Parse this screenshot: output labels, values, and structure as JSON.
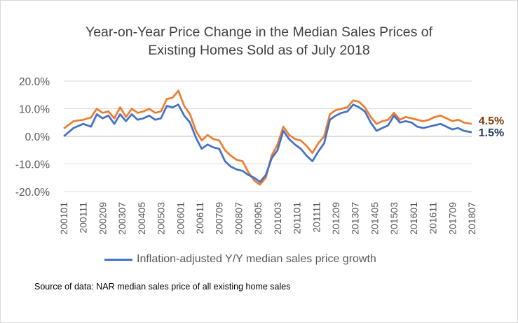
{
  "chart_data": {
    "type": "line",
    "title_line1": "Year-on-Year Price Change in the Median Sales Prices of",
    "title_line2": "Existing Homes Sold as of July 2018",
    "xlabel": "",
    "ylabel": "",
    "ylim": [
      -0.2,
      0.2
    ],
    "y_ticks": [
      0.2,
      0.1,
      0.0,
      -0.1,
      -0.2
    ],
    "y_tick_labels": [
      "20.0%",
      "10.0%",
      "0.0%",
      "-10.0%",
      "-20.0%"
    ],
    "x_start": "2001-01",
    "x_end": "2018-07",
    "x_tick_labels": [
      "200101",
      "200111",
      "200209",
      "200307",
      "200405",
      "200503",
      "200601",
      "200611",
      "200709",
      "200807",
      "200905",
      "201003",
      "201101",
      "201111",
      "201209",
      "201307",
      "201405",
      "201503",
      "201601",
      "201611",
      "201709",
      "201807"
    ],
    "grid": "horizontal",
    "legend_position": "bottom",
    "series": [
      {
        "name": "",
        "color": "#ed7d31",
        "end_label": "4.5%",
        "end_label_color": "#843c0c",
        "points": [
          [
            "2001-01",
            0.028
          ],
          [
            "2001-06",
            0.055
          ],
          [
            "2001-11",
            0.06
          ],
          [
            "2002-03",
            0.068
          ],
          [
            "2002-06",
            0.1
          ],
          [
            "2002-09",
            0.085
          ],
          [
            "2002-12",
            0.09
          ],
          [
            "2003-03",
            0.065
          ],
          [
            "2003-06",
            0.105
          ],
          [
            "2003-09",
            0.07
          ],
          [
            "2003-12",
            0.1
          ],
          [
            "2004-03",
            0.085
          ],
          [
            "2004-06",
            0.09
          ],
          [
            "2004-09",
            0.1
          ],
          [
            "2004-12",
            0.085
          ],
          [
            "2005-03",
            0.09
          ],
          [
            "2005-06",
            0.135
          ],
          [
            "2005-09",
            0.14
          ],
          [
            "2005-12",
            0.165
          ],
          [
            "2006-03",
            0.11
          ],
          [
            "2006-06",
            0.08
          ],
          [
            "2006-09",
            0.02
          ],
          [
            "2006-12",
            -0.015
          ],
          [
            "2007-03",
            0.005
          ],
          [
            "2007-06",
            -0.01
          ],
          [
            "2007-09",
            -0.015
          ],
          [
            "2007-12",
            -0.05
          ],
          [
            "2008-03",
            -0.07
          ],
          [
            "2008-06",
            -0.085
          ],
          [
            "2008-09",
            -0.09
          ],
          [
            "2008-12",
            -0.13
          ],
          [
            "2009-03",
            -0.16
          ],
          [
            "2009-06",
            -0.175
          ],
          [
            "2009-09",
            -0.15
          ],
          [
            "2009-12",
            -0.07
          ],
          [
            "2010-03",
            -0.03
          ],
          [
            "2010-06",
            0.035
          ],
          [
            "2010-09",
            0.005
          ],
          [
            "2010-12",
            -0.01
          ],
          [
            "2011-03",
            -0.015
          ],
          [
            "2011-06",
            -0.035
          ],
          [
            "2011-09",
            -0.06
          ],
          [
            "2011-12",
            -0.025
          ],
          [
            "2012-03",
            0.0
          ],
          [
            "2012-06",
            0.08
          ],
          [
            "2012-09",
            0.095
          ],
          [
            "2012-12",
            0.1
          ],
          [
            "2013-03",
            0.105
          ],
          [
            "2013-06",
            0.13
          ],
          [
            "2013-09",
            0.125
          ],
          [
            "2013-12",
            0.105
          ],
          [
            "2014-03",
            0.07
          ],
          [
            "2014-06",
            0.045
          ],
          [
            "2014-09",
            0.055
          ],
          [
            "2014-12",
            0.06
          ],
          [
            "2015-03",
            0.085
          ],
          [
            "2015-06",
            0.06
          ],
          [
            "2015-09",
            0.07
          ],
          [
            "2015-12",
            0.065
          ],
          [
            "2016-03",
            0.06
          ],
          [
            "2016-06",
            0.055
          ],
          [
            "2016-09",
            0.06
          ],
          [
            "2016-12",
            0.07
          ],
          [
            "2017-03",
            0.075
          ],
          [
            "2017-06",
            0.065
          ],
          [
            "2017-09",
            0.055
          ],
          [
            "2017-12",
            0.06
          ],
          [
            "2018-03",
            0.05
          ],
          [
            "2018-07",
            0.045
          ]
        ]
      },
      {
        "name": "Inflation-adjusted Y/Y median sales price growth",
        "color": "#4472c4",
        "end_label": "1.5%",
        "end_label_color": "#1f3864",
        "points": [
          [
            "2001-01",
            0.0
          ],
          [
            "2001-06",
            0.03
          ],
          [
            "2001-11",
            0.045
          ],
          [
            "2002-03",
            0.035
          ],
          [
            "2002-06",
            0.08
          ],
          [
            "2002-09",
            0.065
          ],
          [
            "2002-12",
            0.075
          ],
          [
            "2003-03",
            0.045
          ],
          [
            "2003-06",
            0.08
          ],
          [
            "2003-09",
            0.055
          ],
          [
            "2003-12",
            0.08
          ],
          [
            "2004-03",
            0.06
          ],
          [
            "2004-06",
            0.065
          ],
          [
            "2004-09",
            0.075
          ],
          [
            "2004-12",
            0.06
          ],
          [
            "2005-03",
            0.065
          ],
          [
            "2005-06",
            0.11
          ],
          [
            "2005-09",
            0.105
          ],
          [
            "2005-12",
            0.115
          ],
          [
            "2006-03",
            0.075
          ],
          [
            "2006-06",
            0.05
          ],
          [
            "2006-09",
            -0.005
          ],
          [
            "2006-12",
            -0.045
          ],
          [
            "2007-03",
            -0.03
          ],
          [
            "2007-06",
            -0.04
          ],
          [
            "2007-09",
            -0.045
          ],
          [
            "2007-12",
            -0.09
          ],
          [
            "2008-03",
            -0.11
          ],
          [
            "2008-06",
            -0.12
          ],
          [
            "2008-09",
            -0.125
          ],
          [
            "2008-12",
            -0.14
          ],
          [
            "2009-03",
            -0.15
          ],
          [
            "2009-06",
            -0.165
          ],
          [
            "2009-09",
            -0.14
          ],
          [
            "2009-12",
            -0.08
          ],
          [
            "2010-03",
            -0.05
          ],
          [
            "2010-06",
            0.02
          ],
          [
            "2010-09",
            -0.01
          ],
          [
            "2010-12",
            -0.03
          ],
          [
            "2011-03",
            -0.045
          ],
          [
            "2011-06",
            -0.07
          ],
          [
            "2011-09",
            -0.09
          ],
          [
            "2011-12",
            -0.055
          ],
          [
            "2012-03",
            -0.025
          ],
          [
            "2012-06",
            0.06
          ],
          [
            "2012-09",
            0.075
          ],
          [
            "2012-12",
            0.085
          ],
          [
            "2013-03",
            0.09
          ],
          [
            "2013-06",
            0.115
          ],
          [
            "2013-09",
            0.105
          ],
          [
            "2013-12",
            0.09
          ],
          [
            "2014-03",
            0.05
          ],
          [
            "2014-06",
            0.02
          ],
          [
            "2014-09",
            0.03
          ],
          [
            "2014-12",
            0.04
          ],
          [
            "2015-03",
            0.075
          ],
          [
            "2015-06",
            0.05
          ],
          [
            "2015-09",
            0.055
          ],
          [
            "2015-12",
            0.05
          ],
          [
            "2016-03",
            0.035
          ],
          [
            "2016-06",
            0.03
          ],
          [
            "2016-09",
            0.035
          ],
          [
            "2016-12",
            0.04
          ],
          [
            "2017-03",
            0.045
          ],
          [
            "2017-06",
            0.035
          ],
          [
            "2017-09",
            0.025
          ],
          [
            "2017-12",
            0.03
          ],
          [
            "2018-03",
            0.02
          ],
          [
            "2018-07",
            0.015
          ]
        ]
      }
    ],
    "source_text": "Source of data: NAR median sales price of all existing home sales"
  }
}
